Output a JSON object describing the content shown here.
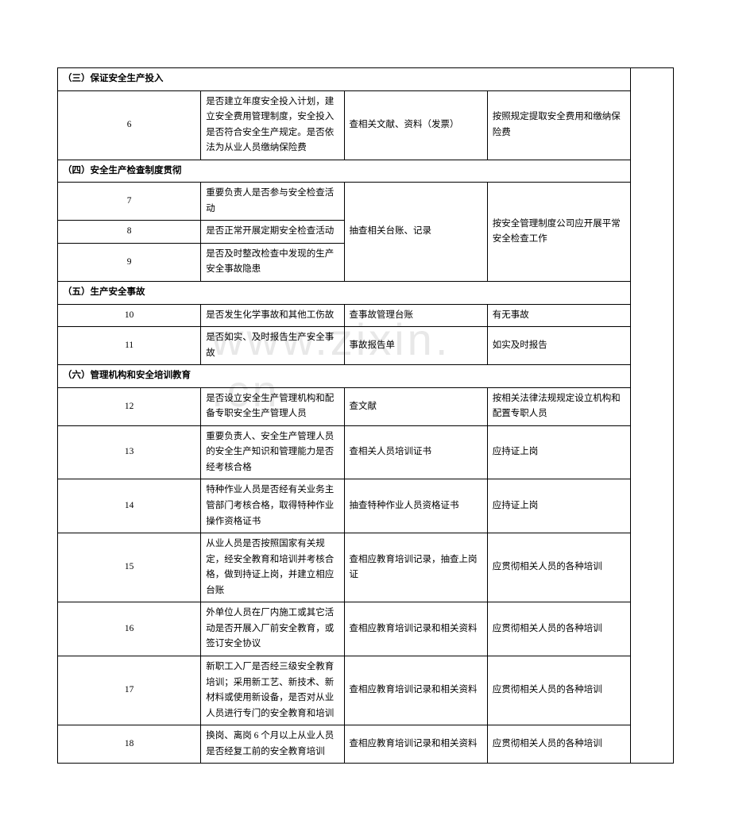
{
  "watermark": "www.zixin. .cn",
  "table": {
    "sections": [
      {
        "header": "（三）保证安全生产投入",
        "rows": [
          {
            "num": "6",
            "desc": "是否建立年度安全投入计划，建立安全费用管理制度，安全投入是否符合安全生产规定。是否依法为从业人员缴纳保险费",
            "method": "查相关文献、资料（发票）",
            "req": "按照规定提取安全费用和缴纳保险费"
          }
        ]
      },
      {
        "header": "（四）安全生产检查制度贯彻",
        "rows": [
          {
            "num": "7",
            "desc": "重要负责人是否参与安全检查活动",
            "method": "抽查相关台账、记录",
            "req": "按安全管理制度公司应开展平常安全检查工作",
            "methodRowspan": 3,
            "reqRowspan": 3
          },
          {
            "num": "8",
            "desc": "是否正常开展定期安全检查活动"
          },
          {
            "num": "9",
            "desc": "是否及时整改检查中发现的生产安全事故隐患"
          }
        ]
      },
      {
        "header": "（五）生产安全事故",
        "rows": [
          {
            "num": "10",
            "desc": "是否发生化学事故和其他工伤故",
            "method": "查事故管理台账",
            "req": "有无事故"
          },
          {
            "num": "11",
            "desc": "是否如实、及时报告生产安全事故",
            "method": "事故报告单",
            "req": "如实及时报告"
          }
        ]
      },
      {
        "header": "（六）管理机构和安全培训教育",
        "rows": [
          {
            "num": "12",
            "desc": "是否设立安全生产管理机构和配备专职安全生产管理人员",
            "method": "查文献",
            "req": "按相关法律法规规定设立机构和配置专职人员"
          },
          {
            "num": "13",
            "desc": "重要负责人、安全生产管理人员的安全生产知识和管理能力是否经考核合格",
            "method": "查相关人员培训证书",
            "req": "应持证上岗"
          },
          {
            "num": "14",
            "desc": "特种作业人员是否经有关业务主管部门考核合格，取得特种作业操作资格证书",
            "method": "抽查特种作业人员资格证书",
            "req": "应持证上岗"
          },
          {
            "num": "15",
            "desc": "从业人员是否按照国家有关规定，经安全教育和培训并考核合格，做到持证上岗，并建立相应台账",
            "method": "查相应教育培训记录，抽查上岗证",
            "req": "应贯彻相关人员的各种培训"
          },
          {
            "num": "16",
            "desc": "外单位人员在厂内施工或其它活动是否开展入厂前安全教育，或签订安全协议",
            "method": "查相应教育培训记录和相关资料",
            "req": "应贯彻相关人员的各种培训"
          },
          {
            "num": "17",
            "desc": "新职工入厂是否经三级安全教育培训；采用新工艺、新技术、新材料或使用新设备，是否对从业人员进行专门的安全教育和培训",
            "method": "查相应教育培训记录和相关资料",
            "req": "应贯彻相关人员的各种培训"
          },
          {
            "num": "18",
            "desc": "换岗、离岗 6 个月以上从业人员是否经复工前的安全教育培训",
            "method": "查相应教育培训记录和相关资料",
            "req": "应贯彻相关人员的各种培训"
          }
        ]
      }
    ]
  }
}
